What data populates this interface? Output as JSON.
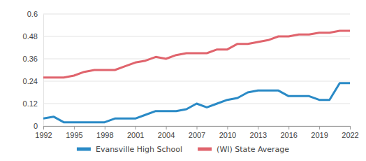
{
  "chart_data": {
    "type": "line",
    "x": [
      1992,
      1993,
      1994,
      1995,
      1996,
      1997,
      1998,
      1999,
      2000,
      2001,
      2002,
      2003,
      2004,
      2005,
      2006,
      2007,
      2008,
      2009,
      2010,
      2011,
      2012,
      2013,
      2014,
      2015,
      2016,
      2017,
      2018,
      2019,
      2020,
      2021,
      2022
    ],
    "series": [
      {
        "name": "Evansville High School",
        "color": "#2a8ac6",
        "values": [
          0.04,
          0.05,
          0.02,
          0.02,
          0.02,
          0.02,
          0.02,
          0.04,
          0.04,
          0.04,
          0.06,
          0.08,
          0.08,
          0.08,
          0.09,
          0.12,
          0.1,
          0.12,
          0.14,
          0.15,
          0.18,
          0.19,
          0.19,
          0.19,
          0.16,
          0.16,
          0.16,
          0.14,
          0.14,
          0.23,
          0.23
        ]
      },
      {
        "name": "(WI) State Average",
        "color": "#e0646d",
        "values": [
          0.26,
          0.26,
          0.26,
          0.27,
          0.29,
          0.3,
          0.3,
          0.3,
          0.32,
          0.34,
          0.35,
          0.37,
          0.36,
          0.38,
          0.39,
          0.39,
          0.39,
          0.41,
          0.41,
          0.44,
          0.44,
          0.45,
          0.46,
          0.48,
          0.48,
          0.49,
          0.49,
          0.5,
          0.5,
          0.51,
          0.51
        ]
      }
    ],
    "xlim": [
      1992,
      2022
    ],
    "xticks": [
      1992,
      1995,
      1998,
      2001,
      2004,
      2007,
      2010,
      2013,
      2016,
      2019,
      2022
    ],
    "ylim": [
      0,
      0.6
    ],
    "yticks": [
      0,
      0.12,
      0.24,
      0.36,
      0.48,
      0.6
    ],
    "grid": true,
    "legend": "bottom"
  }
}
